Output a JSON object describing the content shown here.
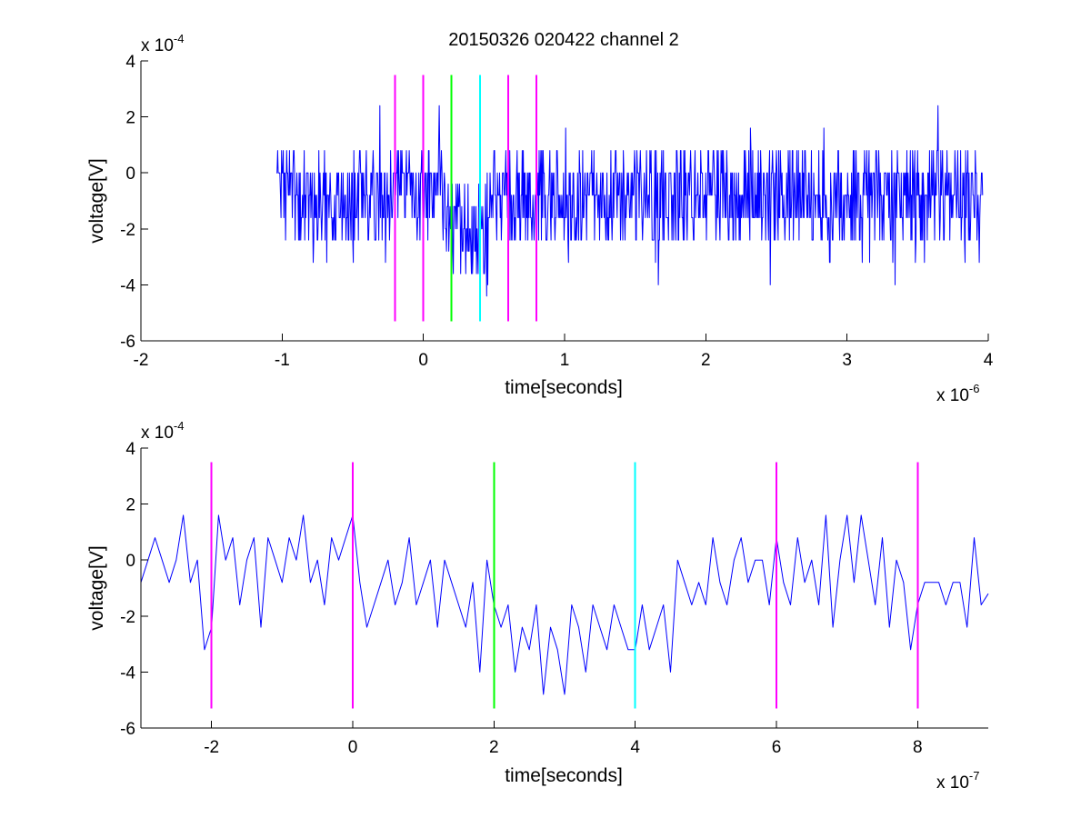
{
  "figure_title": "20150326 020422 channel 2",
  "colors": {
    "signal": "#0000ff",
    "marker_magenta": "#ff00ff",
    "marker_green": "#00ff00",
    "marker_cyan": "#00ffff",
    "axes": "#000000"
  },
  "chart_data": [
    {
      "type": "line",
      "xlabel": "time[seconds]",
      "ylabel": "voltage[V]",
      "x_multiplier": {
        "base": "x 10",
        "exp": "-6"
      },
      "y_multiplier": {
        "base": "x 10",
        "exp": "-4"
      },
      "xlim": [
        -2,
        4
      ],
      "ylim": [
        -6,
        4
      ],
      "xticks": [
        -2,
        -1,
        0,
        1,
        2,
        3,
        4
      ],
      "yticks": [
        -6,
        -4,
        -2,
        0,
        2,
        4
      ],
      "xtick_labels": [
        "-2",
        "-1",
        "0",
        "1",
        "2",
        "3",
        "4"
      ],
      "ytick_labels": [
        "-6",
        "-4",
        "-2",
        "0",
        "2",
        "4"
      ],
      "grid": false,
      "series_x_range": [
        -1.04,
        3.96
      ],
      "series_y_stats": {
        "quantization_step": 0.8,
        "typical_range": [
          -2.4,
          0.8
        ],
        "min": -4.8,
        "max": 3.2
      },
      "vlines": [
        {
          "x": -0.2,
          "y_range": [
            -5.3,
            3.5
          ],
          "color": "#ff00ff"
        },
        {
          "x": 0.0,
          "y_range": [
            -5.3,
            3.5
          ],
          "color": "#ff00ff"
        },
        {
          "x": 0.2,
          "y_range": [
            -5.3,
            3.5
          ],
          "color": "#00ff00"
        },
        {
          "x": 0.4,
          "y_range": [
            -5.3,
            3.5
          ],
          "color": "#00ffff"
        },
        {
          "x": 0.6,
          "y_range": [
            -5.3,
            3.5
          ],
          "color": "#ff00ff"
        },
        {
          "x": 0.8,
          "y_range": [
            -5.3,
            3.5
          ],
          "color": "#ff00ff"
        }
      ]
    },
    {
      "type": "line",
      "xlabel": "time[seconds]",
      "ylabel": "voltage[V]",
      "x_multiplier": {
        "base": "x 10",
        "exp": "-7"
      },
      "y_multiplier": {
        "base": "x 10",
        "exp": "-4"
      },
      "xlim": [
        -3,
        9
      ],
      "ylim": [
        -6,
        4
      ],
      "xticks": [
        -2,
        0,
        2,
        4,
        6,
        8
      ],
      "yticks": [
        -6,
        -4,
        -2,
        0,
        2,
        4
      ],
      "xtick_labels": [
        "-2",
        "0",
        "2",
        "4",
        "6",
        "8"
      ],
      "ytick_labels": [
        "-6",
        "-4",
        "-2",
        "0",
        "2",
        "4"
      ],
      "grid": false,
      "vlines": [
        {
          "x": -2,
          "y_range": [
            -5.3,
            3.5
          ],
          "color": "#ff00ff"
        },
        {
          "x": 0,
          "y_range": [
            -5.3,
            3.5
          ],
          "color": "#ff00ff"
        },
        {
          "x": 2,
          "y_range": [
            -5.3,
            3.5
          ],
          "color": "#00ff00"
        },
        {
          "x": 4,
          "y_range": [
            -5.3,
            3.5
          ],
          "color": "#00ffff"
        },
        {
          "x": 6,
          "y_range": [
            -5.3,
            3.5
          ],
          "color": "#ff00ff"
        },
        {
          "x": 8,
          "y_range": [
            -5.3,
            3.5
          ],
          "color": "#ff00ff"
        }
      ],
      "series": [
        {
          "x": [
            -3.0,
            -2.9,
            -2.8,
            -2.7,
            -2.6,
            -2.5,
            -2.4,
            -2.3,
            -2.2,
            -2.1,
            -2.0,
            -1.9,
            -1.8,
            -1.7,
            -1.6,
            -1.5,
            -1.4,
            -1.3,
            -1.2,
            -1.1,
            -1.0,
            -0.9,
            -0.8,
            -0.7,
            -0.6,
            -0.5,
            -0.4,
            -0.3,
            -0.2,
            -0.1,
            0.0,
            0.1,
            0.2,
            0.3,
            0.4,
            0.5,
            0.6,
            0.7,
            0.8,
            0.9,
            1.0,
            1.1,
            1.2,
            1.3,
            1.4,
            1.5,
            1.6,
            1.7,
            1.8,
            1.9,
            2.0,
            2.1,
            2.2,
            2.3,
            2.4,
            2.5,
            2.6,
            2.7,
            2.8,
            2.9,
            3.0,
            3.1,
            3.2,
            3.3,
            3.4,
            3.5,
            3.6,
            3.7,
            3.8,
            3.9,
            4.0,
            4.1,
            4.2,
            4.3,
            4.4,
            4.5,
            4.6,
            4.7,
            4.8,
            4.9,
            5.0,
            5.1,
            5.2,
            5.3,
            5.4,
            5.5,
            5.6,
            5.7,
            5.8,
            5.9,
            6.0,
            6.1,
            6.2,
            6.3,
            6.4,
            6.5,
            6.6,
            6.7,
            6.8,
            6.9,
            7.0,
            7.1,
            7.2,
            7.3,
            7.4,
            7.5,
            7.6,
            7.7,
            7.8,
            7.9,
            8.0,
            8.1,
            8.2,
            8.3,
            8.4,
            8.5,
            8.6,
            8.7,
            8.8,
            8.9,
            9.0
          ],
          "values": [
            -0.8,
            0.0,
            0.8,
            0.0,
            -0.8,
            0.0,
            1.6,
            -0.8,
            0.0,
            -3.2,
            -2.4,
            1.6,
            0.0,
            0.8,
            -1.6,
            0.0,
            0.8,
            -2.4,
            0.8,
            0.0,
            -0.8,
            0.8,
            0.0,
            1.6,
            -0.8,
            0.0,
            -1.6,
            0.8,
            0.0,
            0.8,
            1.6,
            -0.8,
            -2.4,
            -1.6,
            -0.8,
            0.0,
            -1.6,
            -0.8,
            0.8,
            -1.6,
            -0.8,
            0.0,
            -2.4,
            0.0,
            -0.8,
            -1.6,
            -2.4,
            -0.8,
            -4.0,
            0.0,
            -1.6,
            -2.4,
            -1.6,
            -4.0,
            -2.4,
            -3.2,
            -1.6,
            -4.8,
            -2.4,
            -3.2,
            -4.8,
            -1.6,
            -2.4,
            -4.0,
            -1.6,
            -2.4,
            -3.2,
            -1.6,
            -2.4,
            -3.2,
            -3.2,
            -1.6,
            -3.2,
            -2.4,
            -1.6,
            -4.0,
            0.0,
            -0.8,
            -1.6,
            -0.8,
            -1.6,
            0.8,
            -0.8,
            -1.6,
            0.0,
            0.8,
            -0.8,
            0.0,
            0.0,
            -1.6,
            0.8,
            -0.8,
            -1.6,
            0.8,
            -0.8,
            0.0,
            -1.6,
            1.6,
            -2.4,
            0.0,
            1.6,
            -0.8,
            1.6,
            0.0,
            -1.6,
            0.8,
            -2.4,
            0.0,
            -0.8,
            -3.2,
            -1.6,
            -0.8,
            -0.8,
            -0.8,
            -1.6,
            -0.8,
            -0.8,
            -2.4,
            0.8,
            -1.6,
            -1.2
          ]
        }
      ]
    }
  ]
}
